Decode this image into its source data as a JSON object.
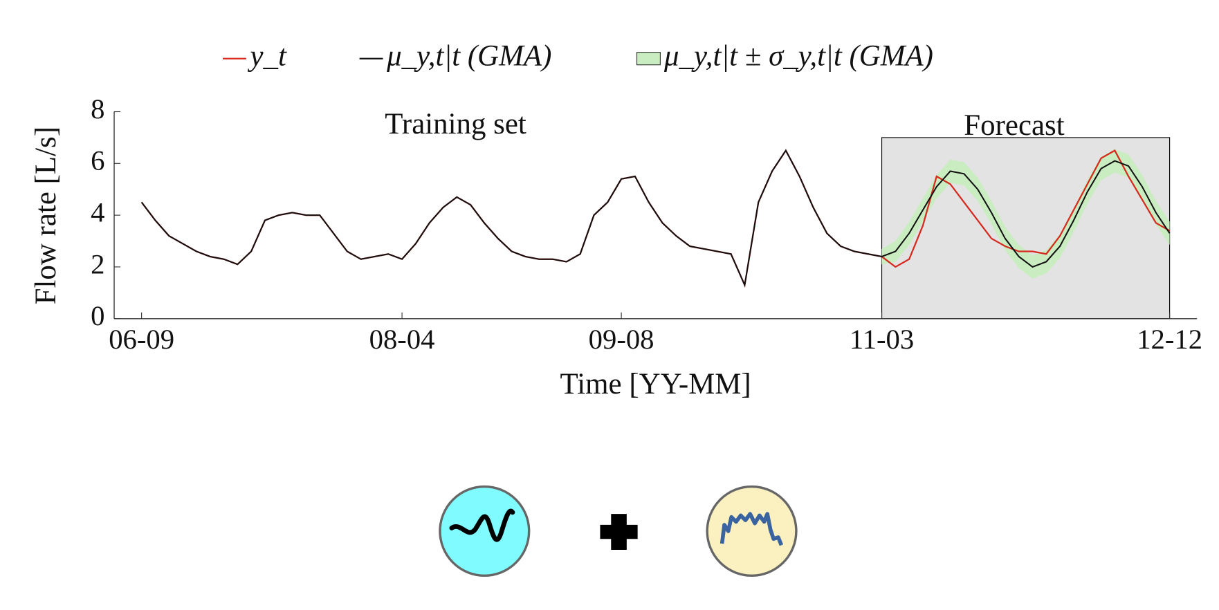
{
  "chart_data": {
    "type": "line",
    "xlabel": "Time [YY-MM]",
    "ylabel": "Flow rate [L/s]",
    "annotations": [
      "Training set",
      "Forecast"
    ],
    "forecast_region": {
      "x": [
        "11-03",
        "12-12"
      ],
      "ylim": [
        0,
        7
      ],
      "color": "#e3e3e3"
    },
    "x": [
      "06-09",
      "06-10",
      "06-11",
      "06-12",
      "07-01",
      "07-02",
      "07-03",
      "07-04",
      "07-05",
      "07-06",
      "07-07",
      "07-08",
      "07-09",
      "07-10",
      "07-11",
      "07-12",
      "08-01",
      "08-02",
      "08-03",
      "08-04",
      "08-05",
      "08-06",
      "08-07",
      "08-08",
      "08-09",
      "08-10",
      "08-11",
      "08-12",
      "09-01",
      "09-02",
      "09-03",
      "09-04",
      "09-05",
      "09-06",
      "09-07",
      "09-08",
      "09-09",
      "09-10",
      "09-11",
      "09-12",
      "10-01",
      "10-02",
      "10-03",
      "10-04",
      "10-05",
      "10-06",
      "10-07",
      "10-08",
      "10-09",
      "10-10",
      "10-11",
      "10-12",
      "11-01",
      "11-02",
      "11-03",
      "11-04",
      "11-05",
      "11-06",
      "11-07",
      "11-08",
      "11-09",
      "11-10",
      "11-11",
      "11-12",
      "12-01",
      "12-02",
      "12-03",
      "12-04",
      "12-05",
      "12-06",
      "12-07",
      "12-08",
      "12-09",
      "12-10",
      "12-11",
      "12-12"
    ],
    "series": [
      {
        "name": "y_t",
        "color": "#d62a1e",
        "values": [
          4.5,
          3.8,
          3.2,
          2.9,
          2.6,
          2.4,
          2.3,
          2.1,
          2.6,
          3.8,
          4.0,
          4.1,
          4.0,
          4.0,
          3.3,
          2.6,
          2.3,
          2.4,
          2.5,
          2.3,
          2.9,
          3.7,
          4.3,
          4.7,
          4.4,
          3.7,
          3.1,
          2.6,
          2.4,
          2.3,
          2.3,
          2.2,
          2.5,
          4.0,
          4.5,
          5.4,
          5.5,
          4.5,
          3.7,
          3.2,
          2.8,
          2.7,
          2.6,
          2.5,
          1.3,
          4.5,
          5.7,
          6.5,
          5.5,
          4.3,
          3.3,
          2.8,
          2.6,
          2.5,
          2.4,
          2.0,
          2.3,
          3.6,
          5.5,
          5.2,
          4.5,
          3.8,
          3.1,
          2.8,
          2.6,
          2.6,
          2.5,
          3.2,
          4.2,
          5.2,
          6.2,
          6.5,
          5.5,
          4.6,
          3.7,
          3.4
        ]
      },
      {
        "name": "μ_y,t|t (GMA)",
        "color": "#111111",
        "values": [
          4.5,
          3.8,
          3.2,
          2.9,
          2.6,
          2.4,
          2.3,
          2.1,
          2.6,
          3.8,
          4.0,
          4.1,
          4.0,
          4.0,
          3.3,
          2.6,
          2.3,
          2.4,
          2.5,
          2.3,
          2.9,
          3.7,
          4.3,
          4.7,
          4.4,
          3.7,
          3.1,
          2.6,
          2.4,
          2.3,
          2.3,
          2.2,
          2.5,
          4.0,
          4.5,
          5.4,
          5.5,
          4.5,
          3.7,
          3.2,
          2.8,
          2.7,
          2.6,
          2.5,
          1.3,
          4.5,
          5.7,
          6.5,
          5.5,
          4.3,
          3.3,
          2.8,
          2.6,
          2.5,
          2.4,
          2.6,
          3.3,
          4.2,
          5.1,
          5.7,
          5.6,
          5.0,
          4.1,
          3.1,
          2.4,
          2.0,
          2.2,
          2.8,
          3.8,
          4.9,
          5.8,
          6.1,
          5.9,
          5.1,
          4.1,
          3.3
        ]
      },
      {
        "name": "μ_y,t|t ± σ_y,t|t (GMA)",
        "color": "#c9ecc0",
        "band_of": 1,
        "values": [
          null,
          null,
          null,
          null,
          null,
          null,
          null,
          null,
          null,
          null,
          null,
          null,
          null,
          null,
          null,
          null,
          null,
          null,
          null,
          null,
          null,
          null,
          null,
          null,
          null,
          null,
          null,
          null,
          null,
          null,
          null,
          null,
          null,
          null,
          null,
          null,
          null,
          null,
          null,
          null,
          null,
          null,
          null,
          null,
          null,
          null,
          null,
          null,
          null,
          null,
          null,
          null,
          null,
          null,
          0.3,
          0.4,
          0.45,
          0.45,
          0.45,
          0.45,
          0.45,
          0.45,
          0.45,
          0.45,
          0.45,
          0.45,
          0.45,
          0.45,
          0.45,
          0.45,
          0.45,
          0.45,
          0.45,
          0.45,
          0.45,
          0.45
        ]
      }
    ],
    "xlim": [
      "06-07",
      "13-02"
    ],
    "xticks": [
      "06-09",
      "08-04",
      "09-08",
      "11-03",
      "12-12"
    ],
    "ylim": [
      0,
      8
    ],
    "yticks": [
      0,
      2,
      4,
      6,
      8
    ]
  }
}
